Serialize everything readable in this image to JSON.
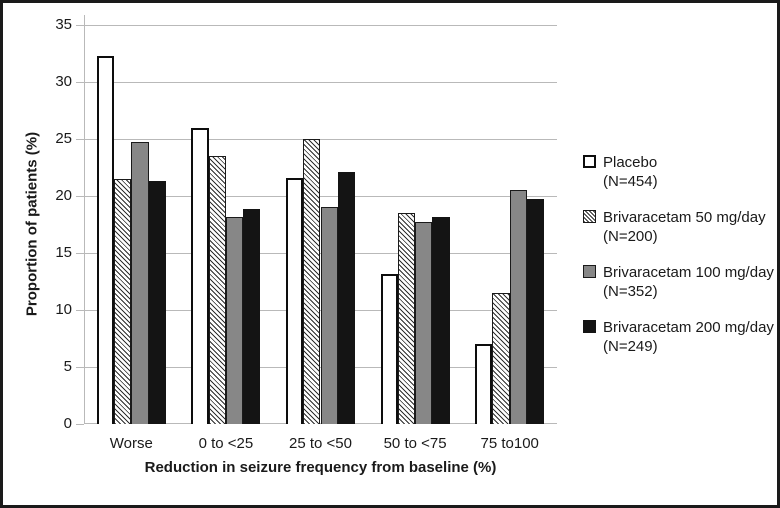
{
  "figure": {
    "background": "#ffffff",
    "border_color": "#1a1a1a"
  },
  "chart_data": {
    "type": "bar",
    "title": "",
    "xlabel": "Reduction in seizure frequency from baseline (%)",
    "ylabel": "Proportion of patients (%)",
    "categories": [
      "Worse",
      "0 to <25",
      "25 to <50",
      "50 to <75",
      "75 to100"
    ],
    "series": [
      {
        "name": "Placebo",
        "n_label": "(N=454)",
        "fill": "white",
        "values": [
          32.3,
          26.0,
          21.6,
          13.2,
          7.0
        ]
      },
      {
        "name": "Brivaracetam 50 mg/day",
        "n_label": "(N=200)",
        "fill": "hatch",
        "values": [
          21.5,
          23.5,
          25.0,
          18.5,
          11.5
        ]
      },
      {
        "name": "Brivaracetam 100 mg/day",
        "n_label": "(N=352)",
        "fill": "gray",
        "values": [
          24.7,
          18.2,
          19.0,
          17.7,
          20.5
        ]
      },
      {
        "name": "Brivaracetam 200 mg/day",
        "n_label": "(N=249)",
        "fill": "black",
        "values": [
          21.3,
          18.9,
          22.1,
          18.2,
          19.7
        ]
      }
    ],
    "ylim": [
      0,
      35
    ],
    "ytick_step": 5,
    "yticks": [
      0,
      5,
      10,
      15,
      20,
      25,
      30,
      35
    ],
    "grid": true,
    "legend_position": "right",
    "colors": {
      "white": "#ffffff",
      "gray": "#878787",
      "black": "#141414",
      "grid": "#b9b9b9",
      "text": "#1a1a1a"
    }
  }
}
